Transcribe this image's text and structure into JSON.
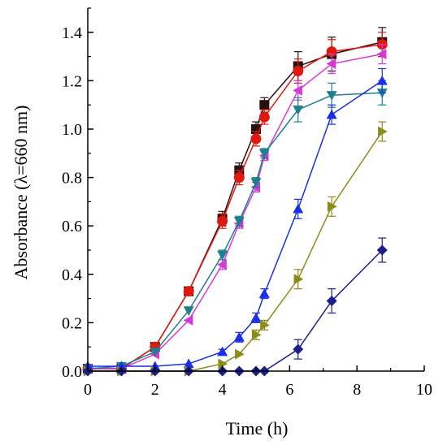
{
  "chart_data": {
    "type": "line",
    "title": "",
    "xlabel": "Time (h)",
    "ylabel": "Absorbance (λ=660 nm)",
    "xlim": [
      0,
      10
    ],
    "ylim": [
      0,
      1.5
    ],
    "xticks": [
      0,
      2,
      4,
      6,
      8,
      10
    ],
    "yticks": [
      0.0,
      0.2,
      0.4,
      0.6,
      0.8,
      1.0,
      1.2,
      1.4
    ],
    "xtick_labels": [
      "0",
      "2",
      "4",
      "6",
      "8",
      "10"
    ],
    "ytick_labels": [
      "0.0",
      "0.2",
      "0.4",
      "0.6",
      "0.8",
      "1.0",
      "1.2",
      "1.4"
    ],
    "grid": false,
    "legend": "none",
    "series": [
      {
        "marker": "square",
        "color": "#2a0f0f",
        "x": [
          0,
          1,
          2,
          3,
          4,
          4.5,
          5,
          5.25,
          6.25,
          7.25,
          8.75
        ],
        "y": [
          0.01,
          0.01,
          0.1,
          0.33,
          0.63,
          0.83,
          1.0,
          1.1,
          1.26,
          1.31,
          1.36
        ],
        "err": [
          0,
          0,
          0,
          0,
          0.03,
          0.03,
          0.03,
          0.03,
          0.06,
          0.07,
          0.06
        ]
      },
      {
        "marker": "circle",
        "color": "#e0190f",
        "x": [
          0,
          1,
          2,
          3,
          4,
          4.5,
          5,
          5.25,
          6.25,
          7.25,
          8.75
        ],
        "y": [
          0.01,
          0.01,
          0.1,
          0.33,
          0.62,
          0.8,
          0.96,
          1.05,
          1.24,
          1.32,
          1.35
        ],
        "err": [
          0,
          0,
          0,
          0,
          0.03,
          0.03,
          0.03,
          0.03,
          0.05,
          0.05,
          0.05
        ]
      },
      {
        "marker": "triangle-left",
        "color": "#d63ad6",
        "x": [
          0,
          1,
          2,
          3,
          4,
          4.5,
          5,
          5.25,
          6.25,
          7.25,
          8.75
        ],
        "y": [
          0.01,
          0.01,
          0.07,
          0.21,
          0.44,
          0.61,
          0.76,
          0.89,
          1.16,
          1.27,
          1.31
        ],
        "err": [
          0,
          0,
          0,
          0,
          0.02,
          0.02,
          0.02,
          0.02,
          0.04,
          0.04,
          0.04
        ]
      },
      {
        "marker": "triangle-down",
        "color": "#1f7f8f",
        "x": [
          0,
          1,
          2,
          3,
          4,
          4.5,
          5,
          5.25,
          6.25,
          7.25,
          8.75
        ],
        "y": [
          0.01,
          0.02,
          0.08,
          0.25,
          0.48,
          0.62,
          0.78,
          0.9,
          1.08,
          1.14,
          1.15
        ],
        "err": [
          0,
          0,
          0,
          0,
          0.02,
          0.02,
          0.02,
          0.02,
          0.05,
          0.05,
          0.05
        ]
      },
      {
        "marker": "triangle-up",
        "color": "#1a2fe6",
        "x": [
          0,
          1,
          2,
          3,
          4,
          4.5,
          5,
          5.25,
          6.25,
          7.25,
          8.75
        ],
        "y": [
          0.02,
          0.02,
          0.02,
          0.03,
          0.08,
          0.14,
          0.22,
          0.32,
          0.67,
          1.06,
          1.2
        ],
        "err": [
          0,
          0,
          0,
          0,
          0.01,
          0.02,
          0.02,
          0.02,
          0.04,
          0.04,
          0.05
        ]
      },
      {
        "marker": "triangle-right",
        "color": "#8c8c1a",
        "x": [
          0,
          1,
          2,
          3,
          4,
          4.5,
          5,
          5.25,
          6.25,
          7.25,
          8.75
        ],
        "y": [
          0.0,
          0.0,
          0.0,
          0.0,
          0.03,
          0.07,
          0.15,
          0.19,
          0.38,
          0.68,
          0.99
        ],
        "err": [
          0,
          0,
          0,
          0,
          0,
          0,
          0.02,
          0.02,
          0.04,
          0.04,
          0.04
        ]
      },
      {
        "marker": "diamond",
        "color": "#1a1f8c",
        "x": [
          0,
          1,
          2,
          3,
          4,
          4.5,
          5,
          5.25,
          6.25,
          7.25,
          8.75
        ],
        "y": [
          0.0,
          0.0,
          0.0,
          0.0,
          0.0,
          0.0,
          0.0,
          0.0,
          0.09,
          0.29,
          0.5
        ],
        "err": [
          0,
          0,
          0,
          0,
          0,
          0,
          0,
          0,
          0.04,
          0.05,
          0.05
        ]
      }
    ]
  }
}
